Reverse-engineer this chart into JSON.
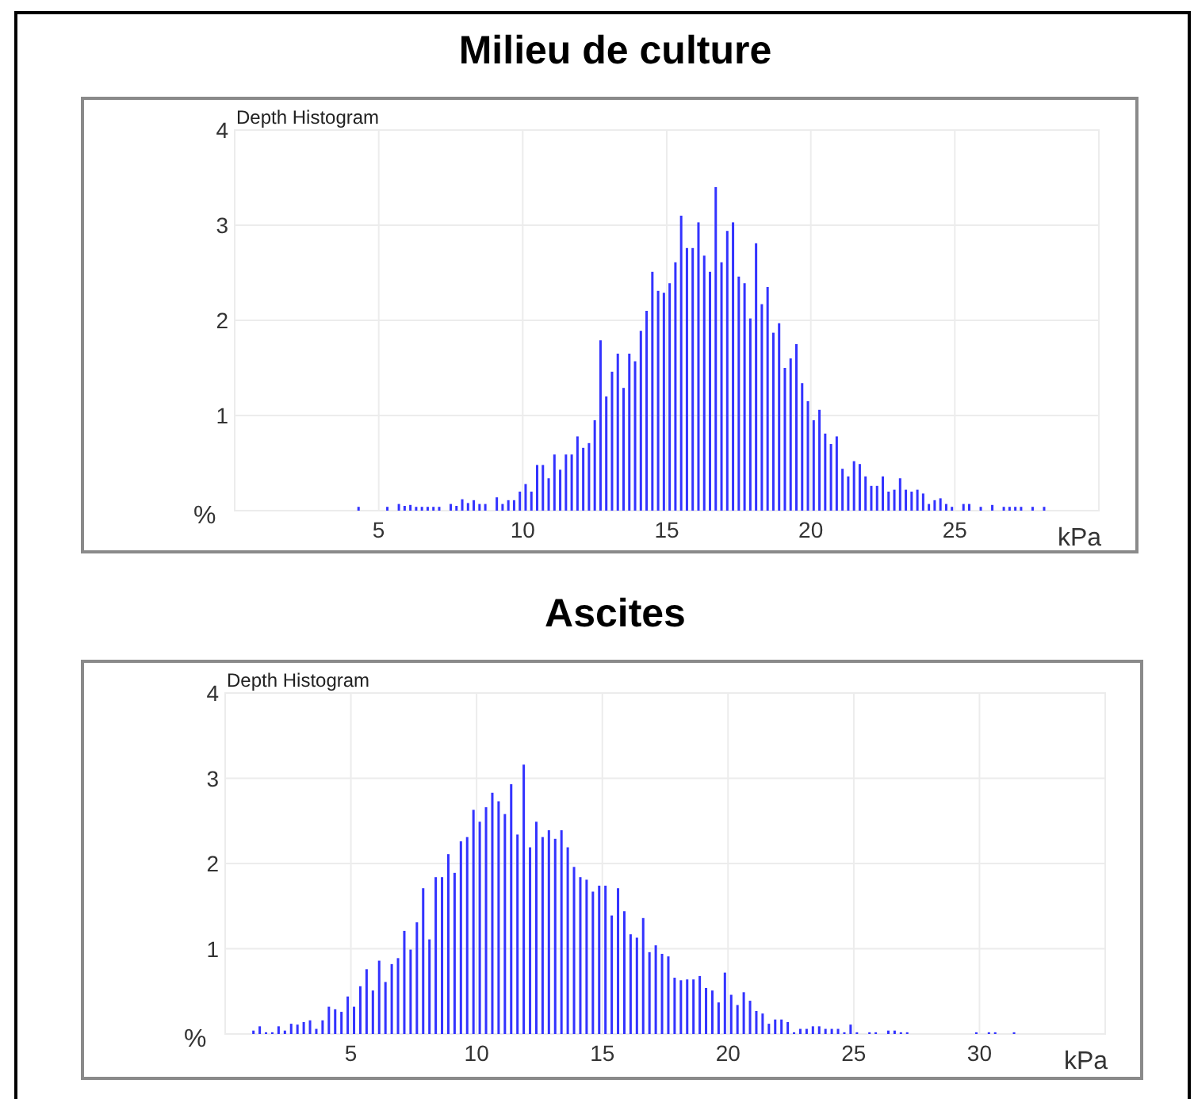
{
  "chart_data": [
    {
      "type": "histogram",
      "title": "Milieu de culture",
      "subtitle": "Depth Histogram",
      "xlabel": "kPa",
      "ylabel": "%",
      "color": "#3333ff",
      "grid": true,
      "xlim": [
        0,
        30
      ],
      "xticks": [
        5,
        10,
        15,
        20,
        25
      ],
      "ylim": [
        0,
        4
      ],
      "yticks": [
        1,
        2,
        3,
        4
      ],
      "bins": [
        4.2,
        4.4,
        4.6,
        4.8,
        5,
        5.2,
        5.4,
        5.6,
        5.8,
        6,
        6.2,
        6.4,
        6.6,
        6.8,
        7,
        7.2,
        7.4,
        7.6,
        7.8,
        8,
        8.2,
        8.4,
        8.6,
        8.8,
        9,
        9.2,
        9.4,
        9.6,
        9.8,
        10,
        10.2,
        10.4,
        10.6,
        10.8,
        11,
        11.2,
        11.4,
        11.6,
        11.8,
        12,
        12.2,
        12.4,
        12.6,
        12.8,
        13,
        13.2,
        13.4,
        13.6,
        13.8,
        14,
        14.2,
        14.4,
        14.6,
        14.8,
        15,
        15.2,
        15.4,
        15.6,
        15.8,
        16,
        16.2,
        16.4,
        16.6,
        16.8,
        17,
        17.2,
        17.4,
        17.6,
        17.8,
        18,
        18.2,
        18.4,
        18.6,
        18.8,
        19,
        19.2,
        19.4,
        19.6,
        19.8,
        20,
        20.2,
        20.4,
        20.6,
        20.8,
        21,
        21.2,
        21.4,
        21.6,
        21.8,
        22,
        22.2,
        22.4,
        22.6,
        22.8,
        23,
        23.2,
        23.4,
        23.6,
        23.8,
        24,
        24.2,
        24.4,
        24.6,
        24.8,
        25,
        25.2,
        25.4,
        25.6,
        25.8,
        26,
        26.2,
        26.4,
        26.6,
        26.8,
        27,
        27.2,
        27.4,
        27.6,
        27.8,
        28,
        28.2
      ],
      "values": [
        0.04,
        0,
        0,
        0,
        0,
        0.04,
        0,
        0.07,
        0.05,
        0.06,
        0.04,
        0.04,
        0.04,
        0.04,
        0.04,
        0,
        0.07,
        0.05,
        0.12,
        0.08,
        0.11,
        0.07,
        0.07,
        0,
        0.14,
        0.07,
        0.11,
        0.11,
        0.2,
        0.28,
        0.2,
        0.48,
        0.48,
        0.34,
        0.59,
        0.43,
        0.59,
        0.59,
        0.78,
        0.66,
        0.71,
        0.95,
        1.79,
        1.2,
        1.46,
        1.65,
        1.29,
        1.65,
        1.57,
        1.89,
        2.1,
        2.51,
        2.31,
        2.29,
        2.39,
        2.61,
        3.1,
        2.76,
        2.76,
        3.03,
        2.68,
        2.51,
        3.4,
        2.61,
        2.94,
        3.03,
        2.46,
        2.39,
        2.02,
        2.81,
        2.17,
        2.35,
        1.87,
        1.97,
        1.5,
        1.6,
        1.75,
        1.34,
        1.15,
        0.95,
        1.06,
        0.81,
        0.7,
        0.78,
        0.44,
        0.36,
        0.52,
        0.49,
        0.36,
        0.26,
        0.26,
        0.36,
        0.2,
        0.22,
        0.34,
        0.22,
        0.2,
        0.22,
        0.18,
        0.07,
        0.11,
        0.13,
        0.07,
        0.04,
        0,
        0.07,
        0.07,
        0,
        0.04,
        0,
        0.06,
        0,
        0.04,
        0.04,
        0.04,
        0.04,
        0,
        0.04,
        0,
        0.04
      ]
    },
    {
      "type": "histogram",
      "title": "Ascites",
      "subtitle": "Depth Histogram",
      "xlabel": "kPa",
      "ylabel": "%",
      "color": "#3333ff",
      "grid": true,
      "xlim": [
        0,
        35
      ],
      "xticks": [
        5,
        10,
        15,
        20,
        25,
        30
      ],
      "ylim": [
        0,
        4
      ],
      "yticks": [
        1,
        2,
        3,
        4
      ],
      "bins": [
        1,
        1.25,
        1.5,
        1.75,
        2,
        2.25,
        2.5,
        2.75,
        3,
        3.25,
        3.5,
        3.75,
        4,
        4.25,
        4.5,
        4.75,
        5,
        5.25,
        5.5,
        5.75,
        6,
        6.25,
        6.5,
        6.75,
        7,
        7.25,
        7.5,
        7.75,
        8,
        8.25,
        8.5,
        8.75,
        9,
        9.25,
        9.5,
        9.75,
        10,
        10.25,
        10.5,
        10.75,
        11,
        11.25,
        11.5,
        11.75,
        12,
        12.25,
        12.5,
        12.75,
        13,
        13.25,
        13.5,
        13.75,
        14,
        14.25,
        14.5,
        14.75,
        15,
        15.25,
        15.5,
        15.75,
        16,
        16.25,
        16.5,
        16.75,
        17,
        17.25,
        17.5,
        17.75,
        18,
        18.25,
        18.5,
        18.75,
        19,
        19.25,
        19.5,
        19.75,
        20,
        20.25,
        20.5,
        20.75,
        21,
        21.25,
        21.5,
        21.75,
        22,
        22.25,
        22.5,
        22.75,
        23,
        23.25,
        23.5,
        23.75,
        24,
        24.25,
        24.5,
        24.75,
        25,
        25.25,
        25.5,
        25.75,
        26,
        26.25,
        26.5,
        26.75,
        27,
        27.25,
        27.5,
        27.75,
        28,
        28.25,
        28.5,
        28.75,
        29,
        29.25,
        29.5,
        29.75,
        30,
        30.25,
        30.5,
        30.75,
        31,
        31.25,
        31.5
      ],
      "values": [
        0.04,
        0.09,
        0.02,
        0.02,
        0.09,
        0.04,
        0.12,
        0.11,
        0.14,
        0.16,
        0.06,
        0.16,
        0.32,
        0.29,
        0.26,
        0.44,
        0.32,
        0.56,
        0.76,
        0.51,
        0.86,
        0.61,
        0.82,
        0.89,
        1.21,
        0.99,
        1.31,
        1.71,
        1.11,
        1.84,
        1.84,
        2.11,
        1.89,
        2.26,
        2.31,
        2.63,
        2.49,
        2.66,
        2.83,
        2.73,
        2.58,
        2.93,
        2.34,
        3.16,
        2.19,
        2.49,
        2.31,
        2.39,
        2.29,
        2.39,
        2.19,
        1.96,
        1.84,
        1.81,
        1.67,
        1.74,
        1.74,
        1.39,
        1.71,
        1.44,
        1.17,
        1.13,
        1.36,
        0.96,
        1.04,
        0.94,
        0.91,
        0.66,
        0.63,
        0.64,
        0.64,
        0.68,
        0.54,
        0.51,
        0.37,
        0.72,
        0.46,
        0.34,
        0.49,
        0.39,
        0.27,
        0.24,
        0.12,
        0.17,
        0.17,
        0.14,
        0.02,
        0.06,
        0.06,
        0.09,
        0.09,
        0.06,
        0.06,
        0.06,
        0.02,
        0.11,
        0.02,
        0,
        0.02,
        0.02,
        0,
        0.04,
        0.04,
        0.02,
        0.02,
        0,
        0,
        0,
        0,
        0,
        0,
        0,
        0,
        0,
        0,
        0.02,
        0,
        0.02,
        0.02,
        0,
        0,
        0.02
      ]
    }
  ]
}
